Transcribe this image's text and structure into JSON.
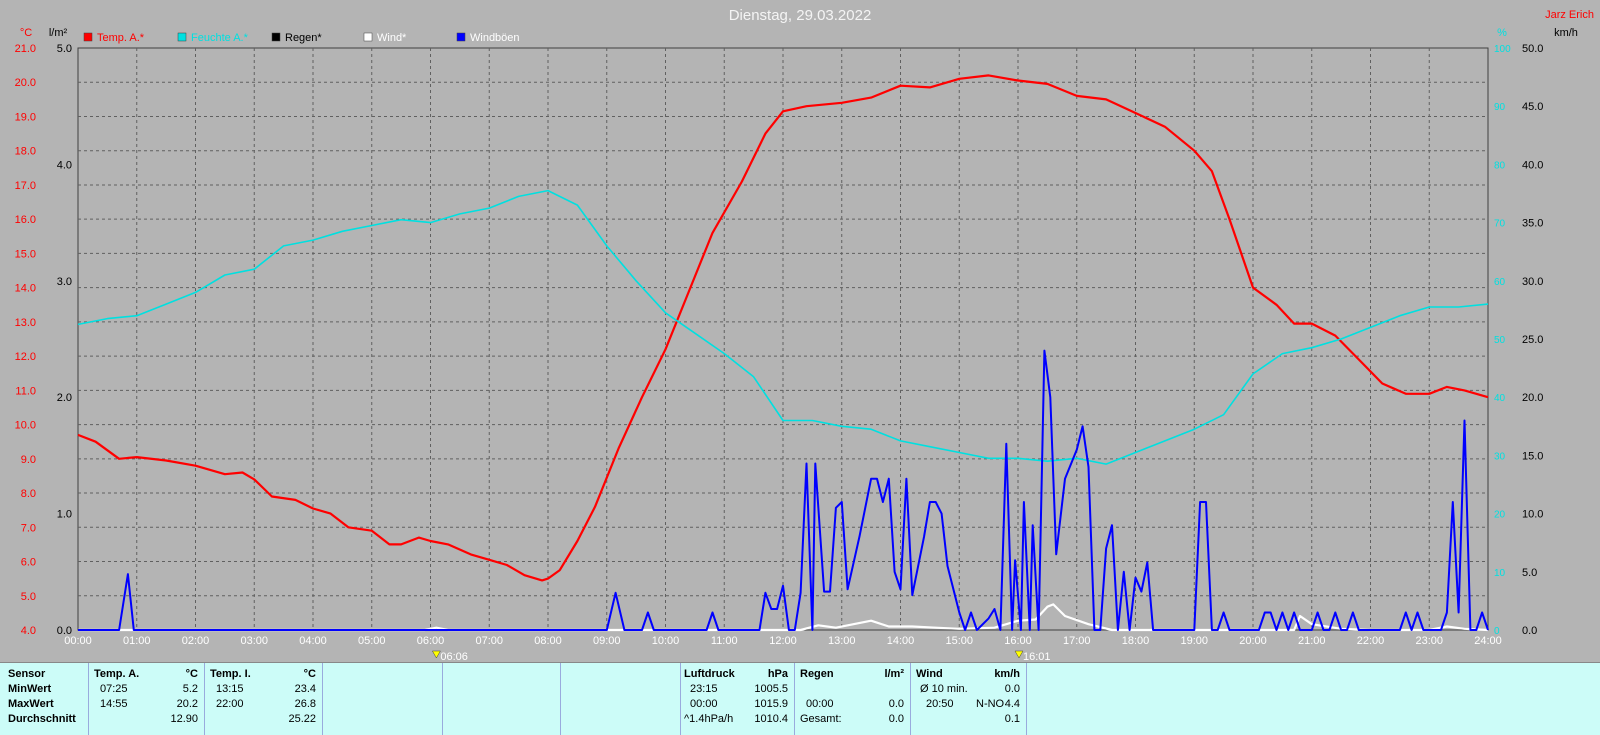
{
  "title": "Dienstag, 29.03.2022",
  "author": "Jarz Erich",
  "colors": {
    "temp": "#ff0000",
    "humidity": "#00e0e0",
    "rain": "#000000",
    "wind": "#ffffff",
    "gust": "#0000ff",
    "grid": "#606060",
    "plotbg": "#b4b4b4",
    "stats_bg": "#ccfcf8"
  },
  "chart_data": {
    "type": "line",
    "title": "Dienstag, 29.03.2022",
    "x_ticks": [
      "00:00",
      "01:00",
      "02:00",
      "03:00",
      "04:00",
      "05:00",
      "06:00",
      "07:00",
      "08:00",
      "09:00",
      "10:00",
      "11:00",
      "12:00",
      "13:00",
      "14:00",
      "15:00",
      "16:00",
      "17:00",
      "18:00",
      "19:00",
      "20:00",
      "21:00",
      "22:00",
      "23:00",
      "24:00"
    ],
    "sunrise": "06:06",
    "sunset": "16:01",
    "axes": {
      "temp": {
        "unit": "°C",
        "ylim": [
          4.0,
          21.0
        ],
        "ticks": [
          "21.0",
          "20.0",
          "19.0",
          "18.0",
          "17.0",
          "16.0",
          "15.0",
          "14.0",
          "13.0",
          "12.0",
          "11.0",
          "10.0",
          "9.0",
          "8.0",
          "7.0",
          "6.0",
          "5.0",
          "4.0"
        ]
      },
      "rain": {
        "unit": "l/m²",
        "ylim": [
          0.0,
          5.0
        ],
        "ticks": [
          "5.0",
          "4.0",
          "3.0",
          "2.0",
          "1.0",
          "0.0"
        ]
      },
      "humidity": {
        "unit": "%",
        "ylim": [
          0,
          100
        ],
        "ticks": [
          "100",
          "90",
          "80",
          "70",
          "60",
          "50",
          "40",
          "30",
          "20",
          "10",
          "0"
        ]
      },
      "wind": {
        "unit": "km/h",
        "ylim": [
          0,
          50
        ],
        "ticks": [
          "50.0",
          "45.0",
          "40.0",
          "35.0",
          "30.0",
          "25.0",
          "20.0",
          "15.0",
          "10.0",
          "5.0",
          "0.0"
        ]
      }
    },
    "legend": [
      "Temp. A.*",
      "Feuchte A.*",
      "Regen*",
      "Wind*",
      "Windböen"
    ],
    "series": [
      {
        "name": "Temp. A.*",
        "axis": "temp",
        "color": "#ff0000",
        "points": [
          [
            0,
            9.7
          ],
          [
            0.3,
            9.5
          ],
          [
            0.7,
            9.0
          ],
          [
            1.0,
            9.05
          ],
          [
            1.5,
            8.95
          ],
          [
            2.0,
            8.8
          ],
          [
            2.5,
            8.55
          ],
          [
            2.8,
            8.6
          ],
          [
            3.0,
            8.4
          ],
          [
            3.3,
            7.9
          ],
          [
            3.7,
            7.8
          ],
          [
            4.0,
            7.55
          ],
          [
            4.3,
            7.4
          ],
          [
            4.6,
            7.0
          ],
          [
            5.0,
            6.9
          ],
          [
            5.3,
            6.5
          ],
          [
            5.5,
            6.5
          ],
          [
            5.8,
            6.7
          ],
          [
            6.0,
            6.6
          ],
          [
            6.3,
            6.5
          ],
          [
            6.7,
            6.2
          ],
          [
            7.0,
            6.05
          ],
          [
            7.3,
            5.9
          ],
          [
            7.6,
            5.6
          ],
          [
            7.9,
            5.45
          ],
          [
            8.0,
            5.5
          ],
          [
            8.2,
            5.75
          ],
          [
            8.5,
            6.6
          ],
          [
            8.8,
            7.6
          ],
          [
            9.2,
            9.3
          ],
          [
            9.6,
            10.8
          ],
          [
            10.0,
            12.2
          ],
          [
            10.4,
            13.9
          ],
          [
            10.8,
            15.6
          ],
          [
            11.3,
            17.1
          ],
          [
            11.7,
            18.5
          ],
          [
            12.0,
            19.15
          ],
          [
            12.4,
            19.3
          ],
          [
            13.0,
            19.4
          ],
          [
            13.5,
            19.55
          ],
          [
            14.0,
            19.9
          ],
          [
            14.5,
            19.85
          ],
          [
            15.0,
            20.1
          ],
          [
            15.5,
            20.2
          ],
          [
            16.0,
            20.05
          ],
          [
            16.5,
            19.95
          ],
          [
            17.0,
            19.6
          ],
          [
            17.5,
            19.5
          ],
          [
            18.0,
            19.1
          ],
          [
            18.5,
            18.7
          ],
          [
            19.0,
            18.0
          ],
          [
            19.3,
            17.4
          ],
          [
            19.6,
            16.0
          ],
          [
            20.0,
            14.0
          ],
          [
            20.4,
            13.5
          ],
          [
            20.7,
            12.95
          ],
          [
            21.0,
            12.95
          ],
          [
            21.4,
            12.6
          ],
          [
            21.8,
            11.9
          ],
          [
            22.2,
            11.2
          ],
          [
            22.6,
            10.9
          ],
          [
            23.0,
            10.9
          ],
          [
            23.3,
            11.1
          ],
          [
            23.6,
            11.0
          ],
          [
            24.0,
            10.8
          ]
        ]
      },
      {
        "name": "Feuchte A.*",
        "axis": "humidity",
        "color": "#00e0e0",
        "points": [
          [
            0,
            52.5
          ],
          [
            0.5,
            53.5
          ],
          [
            1.0,
            54
          ],
          [
            1.5,
            56
          ],
          [
            2.0,
            58
          ],
          [
            2.5,
            61
          ],
          [
            3.0,
            62
          ],
          [
            3.5,
            66
          ],
          [
            4.0,
            67
          ],
          [
            4.5,
            68.5
          ],
          [
            5.0,
            69.5
          ],
          [
            5.5,
            70.5
          ],
          [
            6.0,
            70
          ],
          [
            6.5,
            71.5
          ],
          [
            7.0,
            72.5
          ],
          [
            7.5,
            74.5
          ],
          [
            8.0,
            75.5
          ],
          [
            8.5,
            73
          ],
          [
            9.0,
            66
          ],
          [
            9.5,
            60
          ],
          [
            10.0,
            54.5
          ],
          [
            10.5,
            51
          ],
          [
            11.0,
            47.5
          ],
          [
            11.5,
            43.5
          ],
          [
            12.0,
            36
          ],
          [
            12.5,
            36
          ],
          [
            13.0,
            35
          ],
          [
            13.5,
            34.5
          ],
          [
            14.0,
            32.5
          ],
          [
            14.5,
            31.5
          ],
          [
            15.0,
            30.5
          ],
          [
            15.5,
            29.5
          ],
          [
            16.0,
            29.5
          ],
          [
            16.5,
            29
          ],
          [
            17.0,
            29.5
          ],
          [
            17.5,
            28.5
          ],
          [
            18.0,
            30.5
          ],
          [
            18.5,
            32.5
          ],
          [
            19.0,
            34.5
          ],
          [
            19.5,
            37
          ],
          [
            20.0,
            44
          ],
          [
            20.5,
            47.5
          ],
          [
            21.0,
            48.5
          ],
          [
            21.5,
            50
          ],
          [
            22.0,
            52
          ],
          [
            22.5,
            54
          ],
          [
            23.0,
            55.5
          ],
          [
            23.5,
            55.5
          ],
          [
            24.0,
            56
          ]
        ]
      },
      {
        "name": "Wind*",
        "axis": "wind",
        "color": "#ffffff",
        "points": [
          [
            0,
            0
          ],
          [
            5.9,
            0
          ],
          [
            6.1,
            0.2
          ],
          [
            6.3,
            0
          ],
          [
            12.3,
            0
          ],
          [
            12.6,
            0.4
          ],
          [
            12.9,
            0.2
          ],
          [
            13.2,
            0.5
          ],
          [
            13.5,
            0.8
          ],
          [
            13.8,
            0.3
          ],
          [
            14.2,
            0.3
          ],
          [
            14.6,
            0.2
          ],
          [
            15.0,
            0.1
          ],
          [
            15.6,
            0.2
          ],
          [
            16.0,
            0.8
          ],
          [
            16.3,
            0.9
          ],
          [
            16.5,
            2.0
          ],
          [
            16.6,
            2.2
          ],
          [
            16.8,
            1.2
          ],
          [
            17.2,
            0.5
          ],
          [
            17.6,
            0
          ],
          [
            20.7,
            0
          ],
          [
            20.8,
            1.2
          ],
          [
            21.0,
            0.5
          ],
          [
            21.5,
            0.1
          ],
          [
            22.0,
            0
          ],
          [
            23.0,
            0
          ],
          [
            23.3,
            0.3
          ],
          [
            23.6,
            0.1
          ],
          [
            24.0,
            0
          ]
        ]
      },
      {
        "name": "Windböen",
        "axis": "wind",
        "color": "#0000ff",
        "points": [
          [
            0,
            0
          ],
          [
            0.7,
            0
          ],
          [
            0.85,
            4.8
          ],
          [
            0.95,
            0
          ],
          [
            9.0,
            0
          ],
          [
            9.15,
            3.2
          ],
          [
            9.3,
            0
          ],
          [
            9.6,
            0
          ],
          [
            9.7,
            1.5
          ],
          [
            9.8,
            0
          ],
          [
            10.7,
            0
          ],
          [
            10.8,
            1.5
          ],
          [
            10.9,
            0
          ],
          [
            11.6,
            0
          ],
          [
            11.7,
            3.2
          ],
          [
            11.8,
            1.8
          ],
          [
            11.9,
            1.8
          ],
          [
            12.0,
            3.8
          ],
          [
            12.1,
            0
          ],
          [
            12.2,
            0
          ],
          [
            12.3,
            3.2
          ],
          [
            12.4,
            14.3
          ],
          [
            12.5,
            0
          ],
          [
            12.55,
            14.3
          ],
          [
            12.7,
            3.3
          ],
          [
            12.8,
            3.3
          ],
          [
            12.9,
            10.5
          ],
          [
            13.0,
            11.0
          ],
          [
            13.1,
            3.5
          ],
          [
            13.3,
            8.0
          ],
          [
            13.5,
            13.0
          ],
          [
            13.6,
            13.0
          ],
          [
            13.7,
            11.0
          ],
          [
            13.8,
            13.0
          ],
          [
            13.9,
            5.0
          ],
          [
            14.0,
            3.5
          ],
          [
            14.1,
            13.0
          ],
          [
            14.2,
            3.0
          ],
          [
            14.4,
            8.0
          ],
          [
            14.5,
            11.0
          ],
          [
            14.6,
            11.0
          ],
          [
            14.7,
            10.0
          ],
          [
            14.8,
            5.5
          ],
          [
            15.0,
            1.5
          ],
          [
            15.1,
            0
          ],
          [
            15.2,
            1.5
          ],
          [
            15.3,
            0
          ],
          [
            15.5,
            1.0
          ],
          [
            15.6,
            1.8
          ],
          [
            15.7,
            0
          ],
          [
            15.8,
            16.0
          ],
          [
            15.9,
            0
          ],
          [
            15.95,
            6.0
          ],
          [
            16.05,
            0
          ],
          [
            16.1,
            11.0
          ],
          [
            16.2,
            0
          ],
          [
            16.25,
            9.0
          ],
          [
            16.35,
            0
          ],
          [
            16.45,
            24.0
          ],
          [
            16.55,
            20.0
          ],
          [
            16.65,
            6.5
          ],
          [
            16.8,
            13.0
          ],
          [
            17.0,
            15.5
          ],
          [
            17.1,
            17.5
          ],
          [
            17.2,
            14.0
          ],
          [
            17.3,
            0
          ],
          [
            17.4,
            0
          ],
          [
            17.5,
            7.0
          ],
          [
            17.6,
            9.0
          ],
          [
            17.7,
            0
          ],
          [
            17.8,
            5.0
          ],
          [
            17.9,
            0
          ],
          [
            18.0,
            4.5
          ],
          [
            18.1,
            3.3
          ],
          [
            18.2,
            5.8
          ],
          [
            18.3,
            0
          ],
          [
            19.0,
            0
          ],
          [
            19.1,
            11.0
          ],
          [
            19.2,
            11.0
          ],
          [
            19.3,
            0
          ],
          [
            19.4,
            0
          ],
          [
            19.5,
            1.5
          ],
          [
            19.6,
            0
          ],
          [
            20.1,
            0
          ],
          [
            20.2,
            1.5
          ],
          [
            20.3,
            1.5
          ],
          [
            20.4,
            0
          ],
          [
            20.5,
            1.5
          ],
          [
            20.6,
            0
          ],
          [
            20.7,
            1.5
          ],
          [
            20.8,
            0
          ],
          [
            21.0,
            0
          ],
          [
            21.1,
            1.5
          ],
          [
            21.2,
            0
          ],
          [
            21.3,
            0
          ],
          [
            21.4,
            1.5
          ],
          [
            21.5,
            0
          ],
          [
            21.6,
            0
          ],
          [
            21.7,
            1.5
          ],
          [
            21.8,
            0
          ],
          [
            22.5,
            0
          ],
          [
            22.6,
            1.5
          ],
          [
            22.7,
            0
          ],
          [
            22.8,
            1.5
          ],
          [
            22.9,
            0
          ],
          [
            23.2,
            0
          ],
          [
            23.3,
            1.5
          ],
          [
            23.4,
            11.0
          ],
          [
            23.5,
            1.5
          ],
          [
            23.6,
            18.0
          ],
          [
            23.7,
            0
          ],
          [
            23.8,
            0
          ],
          [
            23.9,
            1.5
          ],
          [
            24.0,
            0
          ]
        ]
      }
    ]
  },
  "stats": {
    "sensor": {
      "label": "Sensor",
      "rows": [
        "MinWert",
        "MaxWert",
        "Durchschnitt"
      ]
    },
    "temp_a": {
      "label": "Temp. A.",
      "unit": "°C",
      "min_time": "07:25",
      "min": "5.2",
      "max_time": "14:55",
      "max": "20.2",
      "avg": "12.90"
    },
    "temp_i": {
      "label": "Temp. I.",
      "unit": "°C",
      "min_time": "13:15",
      "min": "23.4",
      "max_time": "22:00",
      "max": "26.8",
      "avg": "25.22"
    },
    "pressure": {
      "label": "Luftdruck",
      "unit": "hPa",
      "min_time": "23:15",
      "min": "1005.5",
      "max_time": "00:00",
      "max": "1015.9",
      "trend": "^1.4hPa/h",
      "avg": "1010.4"
    },
    "rain": {
      "label": "Regen",
      "unit": "l/m²",
      "max_time": "00:00",
      "max": "0.0",
      "total_label": "Gesamt:",
      "total": "0.0"
    },
    "wind": {
      "label": "Wind",
      "unit": "km/h",
      "avg_label": "Ø 10 min.",
      "avg": "0.0",
      "max_time": "20:50",
      "max_dir": "N-NO",
      "max": "4.4",
      "daily_avg": "0.1"
    }
  }
}
